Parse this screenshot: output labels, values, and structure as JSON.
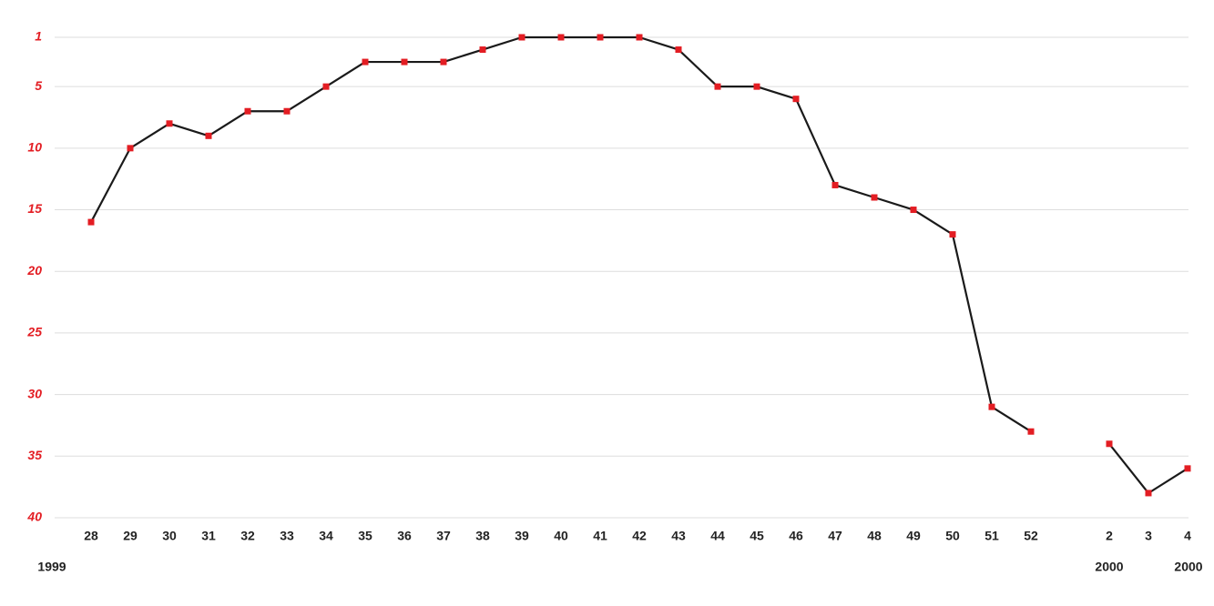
{
  "chart_data": {
    "type": "line",
    "categories": [
      "28",
      "29",
      "30",
      "31",
      "32",
      "33",
      "34",
      "35",
      "36",
      "37",
      "38",
      "39",
      "40",
      "41",
      "42",
      "43",
      "44",
      "45",
      "46",
      "47",
      "48",
      "49",
      "50",
      "51",
      "52",
      null,
      "2",
      "3",
      "4"
    ],
    "series": [
      {
        "color": "#1a1a1a",
        "marker_color": "#e31d23",
        "values": [
          16,
          10,
          8,
          9,
          7,
          7,
          5,
          3,
          3,
          3,
          2,
          1,
          1,
          1,
          1,
          2,
          5,
          5,
          6,
          13,
          14,
          15,
          17,
          31,
          33,
          null,
          34,
          38,
          36
        ]
      }
    ],
    "ylim": [
      1,
      40
    ],
    "yticks": [
      1,
      5,
      10,
      15,
      20,
      25,
      30,
      35,
      40
    ],
    "y_inverted": true,
    "grid": true,
    "year_labels": [
      "1999",
      "2000",
      "2000"
    ]
  }
}
